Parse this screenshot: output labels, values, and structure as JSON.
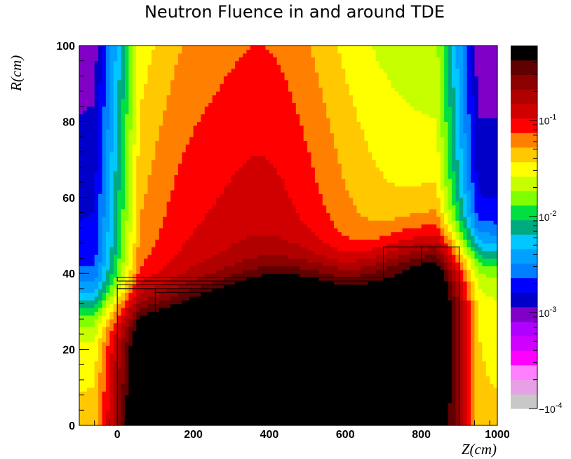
{
  "chart_data": {
    "type": "heatmap",
    "title": "Neutron Fluence in and around TDE",
    "xlabel": "Z(cm)",
    "ylabel": "R(cm)",
    "xlim": [
      -100,
      1000
    ],
    "ylim": [
      0,
      100
    ],
    "x_ticks": [
      "0",
      "200",
      "400",
      "600",
      "800",
      "1000"
    ],
    "y_ticks": [
      "0",
      "20",
      "40",
      "60",
      "80",
      "100"
    ],
    "log_scale_z": true,
    "colorbar": {
      "range": [
        0.0001,
        0.6
      ],
      "tick_labels": [
        {
          "base": "10",
          "exp": "-4",
          "prefix": "−",
          "value": 0.0001
        },
        {
          "base": "10",
          "exp": "-3",
          "prefix": "",
          "value": 0.001
        },
        {
          "base": "10",
          "exp": "-2",
          "prefix": "",
          "value": 0.01
        },
        {
          "base": "10",
          "exp": "-1",
          "prefix": "",
          "value": 0.1
        }
      ],
      "colors": [
        "#c8c8c8",
        "#e6a0e6",
        "#ff80ff",
        "#ff00ff",
        "#d000ff",
        "#b000ff",
        "#8000c8",
        "#0000c8",
        "#0000ff",
        "#0080ff",
        "#00a0ff",
        "#00c8ff",
        "#00aa80",
        "#00e040",
        "#80ff00",
        "#c8ff00",
        "#ffff00",
        "#ffc800",
        "#ff8000",
        "#ff0000",
        "#d00000",
        "#b00000",
        "#8c0000",
        "#600000",
        "#000000"
      ]
    },
    "region_outlines": [
      {
        "z": [
          0,
          100
        ],
        "r": [
          0,
          36
        ]
      },
      {
        "z": [
          100,
          400
        ],
        "r": [
          0,
          35
        ]
      },
      {
        "z": [
          400,
          700
        ],
        "r": [
          0,
          35
        ]
      },
      {
        "z": [
          0,
          700
        ],
        "r": [
          36,
          37
        ]
      },
      {
        "z": [
          0,
          700
        ],
        "r": [
          38,
          39
        ]
      },
      {
        "z": [
          700,
          800
        ],
        "r": [
          0,
          47
        ]
      },
      {
        "z": [
          800,
          900
        ],
        "r": [
          0,
          47
        ]
      }
    ]
  }
}
